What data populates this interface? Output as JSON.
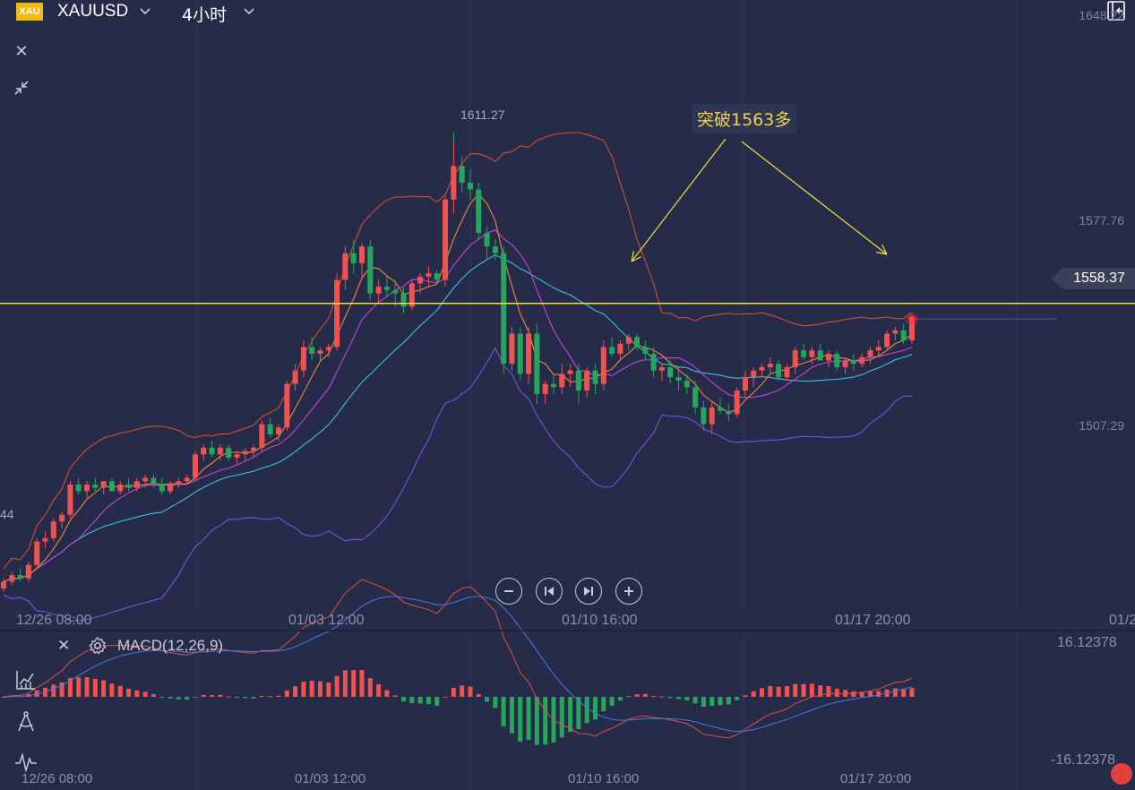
{
  "header": {
    "symbol_badge": "XAU",
    "symbol": "XAUUSD",
    "timeframe": "4小时",
    "icons": [
      "chevron-down-icon",
      "sidepanel-toggle-icon"
    ]
  },
  "main_chart": {
    "y_axis_labels": [
      "1648.22",
      "1577.76",
      "1507.29"
    ],
    "x_axis_labels": [
      "12/26 08:00",
      "01/03 12:00",
      "01/10 16:00",
      "01/17 20:00",
      "01/2"
    ],
    "current_price": "1558.37",
    "high_label": "1611.27",
    "left_cut_label": "44",
    "annotation": "突破1563多",
    "colors": {
      "up": "#ef5350",
      "down": "#26a65b",
      "hline": "#f0e040",
      "ma_orange": "#ef8a3c",
      "ma_magenta": "#c048d8",
      "ma_cyan": "#3ec0e0",
      "band_lower": "#7a52d8",
      "band_upper": "#d05030"
    }
  },
  "chart_data": {
    "type": "candlestick",
    "symbol": "XAUUSD",
    "timeframe": "4小时",
    "ylim": [
      1474,
      1652
    ],
    "x": [
      "12/26 08:00",
      "01/03 12:00",
      "01/10 16:00",
      "01/17 20:00"
    ],
    "price_marks": {
      "current": 1558.37,
      "session_high": 1611.27
    },
    "horizontal_line": 1563,
    "annotation": "突破1563多",
    "candles": [
      [
        1478,
        1481,
        1477,
        1480
      ],
      [
        1480,
        1483,
        1479,
        1482
      ],
      [
        1482,
        1484,
        1480,
        1481
      ],
      [
        1481,
        1486,
        1480,
        1485
      ],
      [
        1485,
        1493,
        1484,
        1492
      ],
      [
        1492,
        1495,
        1490,
        1493
      ],
      [
        1493,
        1499,
        1492,
        1498
      ],
      [
        1498,
        1501,
        1496,
        1500
      ],
      [
        1500,
        1510,
        1499,
        1509
      ],
      [
        1509,
        1511,
        1506,
        1507
      ],
      [
        1507,
        1510,
        1505,
        1509
      ],
      [
        1509,
        1511,
        1507,
        1508
      ],
      [
        1508,
        1510,
        1506,
        1510
      ],
      [
        1510,
        1511,
        1507,
        1507
      ],
      [
        1507,
        1510,
        1506,
        1509
      ],
      [
        1509,
        1511,
        1507,
        1508
      ],
      [
        1508,
        1511,
        1507,
        1510
      ],
      [
        1510,
        1512,
        1508,
        1511
      ],
      [
        1511,
        1512,
        1508,
        1509
      ],
      [
        1509,
        1511,
        1506,
        1507
      ],
      [
        1507,
        1510,
        1506,
        1509
      ],
      [
        1509,
        1511,
        1508,
        1510
      ],
      [
        1510,
        1512,
        1509,
        1511
      ],
      [
        1511,
        1519,
        1510,
        1518
      ],
      [
        1518,
        1521,
        1516,
        1520
      ],
      [
        1520,
        1522,
        1517,
        1518
      ],
      [
        1518,
        1521,
        1516,
        1520
      ],
      [
        1520,
        1521,
        1516,
        1517
      ],
      [
        1517,
        1519,
        1515,
        1518
      ],
      [
        1518,
        1520,
        1516,
        1519
      ],
      [
        1519,
        1521,
        1517,
        1520
      ],
      [
        1520,
        1528,
        1519,
        1527
      ],
      [
        1527,
        1529,
        1523,
        1524
      ],
      [
        1524,
        1527,
        1522,
        1526
      ],
      [
        1526,
        1540,
        1525,
        1539
      ],
      [
        1539,
        1545,
        1537,
        1543
      ],
      [
        1543,
        1552,
        1541,
        1550
      ],
      [
        1550,
        1553,
        1546,
        1548
      ],
      [
        1548,
        1550,
        1546,
        1549
      ],
      [
        1549,
        1551,
        1547,
        1550
      ],
      [
        1550,
        1572,
        1549,
        1570
      ],
      [
        1570,
        1580,
        1567,
        1578
      ],
      [
        1578,
        1582,
        1572,
        1575
      ],
      [
        1575,
        1581,
        1570,
        1580
      ],
      [
        1580,
        1582,
        1564,
        1566
      ],
      [
        1566,
        1570,
        1563,
        1568
      ],
      [
        1568,
        1571,
        1565,
        1567
      ],
      [
        1567,
        1570,
        1562,
        1566
      ],
      [
        1566,
        1568,
        1560,
        1562
      ],
      [
        1562,
        1570,
        1561,
        1569
      ],
      [
        1569,
        1572,
        1566,
        1571
      ],
      [
        1571,
        1574,
        1568,
        1572
      ],
      [
        1572,
        1573,
        1569,
        1570
      ],
      [
        1570,
        1595,
        1568,
        1594
      ],
      [
        1594,
        1611,
        1590,
        1604
      ],
      [
        1604,
        1607,
        1596,
        1599
      ],
      [
        1599,
        1603,
        1594,
        1597
      ],
      [
        1597,
        1599,
        1582,
        1584
      ],
      [
        1584,
        1586,
        1576,
        1580
      ],
      [
        1580,
        1582,
        1576,
        1578
      ],
      [
        1578,
        1580,
        1542,
        1545
      ],
      [
        1545,
        1556,
        1543,
        1554
      ],
      [
        1554,
        1556,
        1540,
        1542
      ],
      [
        1542,
        1556,
        1539,
        1554
      ],
      [
        1554,
        1557,
        1533,
        1536
      ],
      [
        1536,
        1540,
        1533,
        1539
      ],
      [
        1539,
        1542,
        1536,
        1538
      ],
      [
        1538,
        1545,
        1536,
        1542
      ],
      [
        1542,
        1545,
        1538,
        1543
      ],
      [
        1543,
        1545,
        1533,
        1537
      ],
      [
        1537,
        1544,
        1535,
        1543
      ],
      [
        1543,
        1545,
        1536,
        1539
      ],
      [
        1539,
        1552,
        1537,
        1550
      ],
      [
        1550,
        1553,
        1547,
        1548
      ],
      [
        1548,
        1552,
        1546,
        1551
      ],
      [
        1551,
        1554,
        1549,
        1553
      ],
      [
        1553,
        1554,
        1549,
        1550
      ],
      [
        1550,
        1552,
        1546,
        1548
      ],
      [
        1548,
        1550,
        1541,
        1543
      ],
      [
        1543,
        1545,
        1540,
        1544
      ],
      [
        1544,
        1546,
        1539,
        1541
      ],
      [
        1541,
        1544,
        1537,
        1540
      ],
      [
        1540,
        1542,
        1536,
        1538
      ],
      [
        1538,
        1540,
        1530,
        1532
      ],
      [
        1532,
        1534,
        1525,
        1527
      ],
      [
        1527,
        1534,
        1524,
        1532
      ],
      [
        1532,
        1535,
        1530,
        1531
      ],
      [
        1531,
        1533,
        1528,
        1530
      ],
      [
        1530,
        1538,
        1529,
        1537
      ],
      [
        1537,
        1543,
        1535,
        1541
      ],
      [
        1541,
        1544,
        1538,
        1543
      ],
      [
        1543,
        1545,
        1541,
        1544
      ],
      [
        1544,
        1547,
        1542,
        1545
      ],
      [
        1545,
        1546,
        1540,
        1541
      ],
      [
        1541,
        1545,
        1540,
        1544
      ],
      [
        1544,
        1550,
        1542,
        1549
      ],
      [
        1549,
        1551,
        1546,
        1547
      ],
      [
        1547,
        1550,
        1545,
        1549
      ],
      [
        1549,
        1551,
        1546,
        1546
      ],
      [
        1546,
        1549,
        1544,
        1548
      ],
      [
        1548,
        1549,
        1543,
        1544
      ],
      [
        1544,
        1547,
        1542,
        1546
      ],
      [
        1546,
        1548,
        1543,
        1545
      ],
      [
        1545,
        1548,
        1544,
        1547
      ],
      [
        1547,
        1550,
        1545,
        1549
      ],
      [
        1549,
        1552,
        1547,
        1550
      ],
      [
        1550,
        1555,
        1549,
        1554
      ],
      [
        1554,
        1556,
        1552,
        1555
      ],
      [
        1555,
        1557,
        1551,
        1552
      ],
      [
        1552,
        1558,
        1551,
        1558
      ]
    ],
    "macd": {
      "label": "MACD(12,26,9)",
      "ylim": [
        -16.12378,
        16.12378
      ],
      "ticks": [
        "16.12378",
        "-16.12378"
      ],
      "x": [
        "12/26 08:00",
        "01/03 12:00",
        "01/10 16:00",
        "01/17 20:00"
      ]
    }
  },
  "macd_panel": {
    "close_icon": "close-icon",
    "settings_icon": "gear-icon",
    "title": "MACD(12,26,9)",
    "max_label": "16.12378",
    "min_label": "-16.12378",
    "x_axis_labels": [
      "12/26 08:00",
      "01/03 12:00",
      "01/10 16:00",
      "01/17 20:00"
    ]
  },
  "controls": {
    "buttons": [
      "zoom-out-icon",
      "skip-back-icon",
      "skip-forward-icon",
      "zoom-in-icon"
    ]
  },
  "left_tools": [
    "indicator-icon",
    "drawing-compass-icon",
    "waveform-icon"
  ]
}
